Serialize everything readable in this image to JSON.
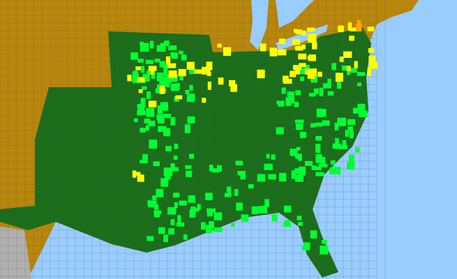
{
  "map": {
    "colors": {
      "ocean": "#99ccff",
      "outside_region": "#b8860b",
      "region_absent": "#1a6e1a",
      "present_common": "#00ff33",
      "present_scattered": "#ffff00",
      "present_rare": "#ffa500",
      "foreign_land": "#b0b0b0",
      "county_border": "#555555"
    }
  }
}
